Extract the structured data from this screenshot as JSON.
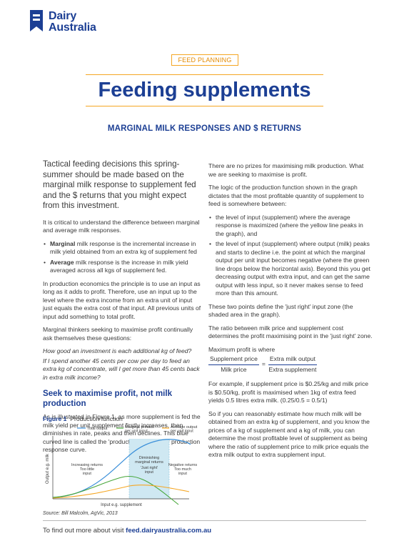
{
  "brand": {
    "line1": "Dairy",
    "line2": "Australia"
  },
  "tag": "FEED PLANNING",
  "title": "Feeding supplements",
  "subtitle": "MARGINAL MILK RESPONSES AND $ RETURNS",
  "left": {
    "intro": "Tactical feeding decisions this spring-summer should be made based on the marginal milk response to supplement fed and the $ returns that you might expect from this investment.",
    "p1": "It is critical to understand the difference between marginal and average milk responses.",
    "bullets": [
      {
        "term": "Marginal",
        "text": " milk response is the incremental increase in milk yield obtained from an extra kg of supplement fed"
      },
      {
        "term": "Average",
        "text": " milk response is the increase in milk yield averaged across all kgs of supplement fed."
      }
    ],
    "p2": "In production economics the principle is to use an input as long as it adds to profit. Therefore, use an input up to the level where the extra income from an extra unit of input just equals the extra cost of that input. All previous units of input add something to total profit.",
    "p3": "Marginal thinkers seeking to maximise profit continually ask themselves these questions:",
    "q1": "How good an investment is each additional kg of feed?",
    "q2": "If I spend another 45 cents per cow per day to feed an extra kg of concentrate, will I get more than 45 cents back in extra milk income?",
    "heading": "Seek to maximise profit, not milk production",
    "p4": "As is illustrated in Figure 1, as more supplement is fed the milk yield per unit supplement firstly increases, then diminishes in rate, peaks and then declines. This blue curved line is called the 'production function' or production response curve."
  },
  "right": {
    "p1": "There are no prizes for maximising milk production. What we are seeking to maximise is profit.",
    "p2": "The logic of the production function shown in the graph dictates that the most profitable quantity of supplement to feed is somewhere between:",
    "bullets": [
      "the level of input (supplement) where the average response is maximized (where the yellow line peaks in the graph), and",
      "the level of input (supplement) where output (milk) peaks and starts to decline i.e. the point at which the marginal output per unit input becomes negative (where the green line drops below the horizontal axis). Beyond this you get decreasing output with extra input, and can get the same output with less input, so it never makes sense to feed more than this amount."
    ],
    "p3": "These two points define the 'just right' input zone (the shaded area in the graph).",
    "p4": "The ratio between milk price and supplement cost determines the profit maximising point in the 'just right' zone.",
    "formula": {
      "label": "Maximum profit is where",
      "num1": "Supplement price",
      "den1": "Milk price",
      "eq": "=",
      "num2": "Extra milk output",
      "den2": "Extra supplement"
    },
    "p5": "For example, if supplement price is $0.25/kg and milk price is $0.50/kg, profit is maximised when 1kg of extra feed yields 0.5 litres extra milk. (0.25/0.5 = 0.5/1)",
    "p6": "So if you can reasonably estimate how much milk will be obtained from an extra kg of supplement, and you know the prices of a kg of supplement and a kg of milk, you can determine the most profitable level of supplement as being where the ratio of supplement price to milk price equals the extra milk output to extra supplement input."
  },
  "figure": {
    "label": "Figure 1",
    "caption": "Production function",
    "source": "Source: Bill Malcolm, AgVic, 2013"
  },
  "chart_data": {
    "type": "line",
    "xlabel": "Input e.g. supplement",
    "ylabel": "Output e.g. milk",
    "legend": [
      "Total output",
      "Marginal product per unit input",
      "Average output per unit input"
    ],
    "colors": {
      "total": "#3a8fd9",
      "marginal": "#46a639",
      "average": "#f5a623",
      "zone": "#cfe8f2"
    },
    "zone_labels": {
      "left": [
        "Increasing returns",
        "Too little",
        "input"
      ],
      "middle": [
        "Diminishing",
        "marginal returns",
        "'Just right'",
        "input"
      ],
      "right": [
        "Negative returns",
        "Too much",
        "input"
      ]
    }
  },
  "footer": {
    "text": "To find out more about visit ",
    "link": "feed.dairyaustralia.com.au"
  }
}
